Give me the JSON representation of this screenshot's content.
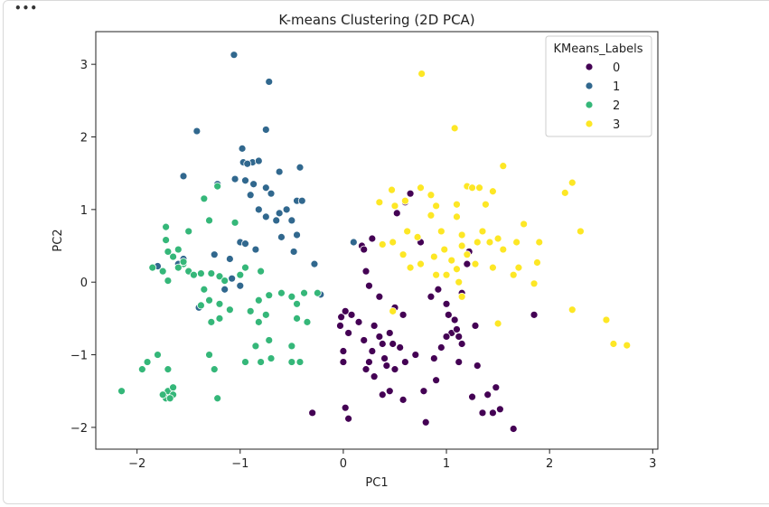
{
  "cell": {
    "menu_label": "•••"
  },
  "chart_data": {
    "type": "scatter",
    "title": "K-means Clustering (2D PCA)",
    "xlabel": "PC1",
    "ylabel": "PC2",
    "xlim": [
      -2.4,
      3.05
    ],
    "ylim": [
      -2.3,
      3.45
    ],
    "xticks": [
      -2,
      -1,
      0,
      1,
      2,
      3
    ],
    "yticks": [
      -2,
      -1,
      0,
      1,
      2,
      3
    ],
    "xtick_labels": [
      "−2",
      "−1",
      "0",
      "1",
      "2",
      "3"
    ],
    "ytick_labels": [
      "−2",
      "−1",
      "0",
      "1",
      "2",
      "3"
    ],
    "grid": false,
    "legend": {
      "title": "KMeans_Labels",
      "placement": "top-right",
      "entries": [
        "0",
        "1",
        "2",
        "3"
      ]
    },
    "colors": [
      "#440154",
      "#31688e",
      "#35b779",
      "#fde725"
    ],
    "series": [
      {
        "name": "0",
        "points": [
          [
            -0.3,
            -1.8
          ],
          [
            0.02,
            -1.73
          ],
          [
            0.05,
            -1.88
          ],
          [
            -0.02,
            -0.48
          ],
          [
            0.02,
            -0.4
          ],
          [
            0.08,
            -0.45
          ],
          [
            -0.03,
            -0.6
          ],
          [
            0.05,
            -0.7
          ],
          [
            0.0,
            -0.95
          ],
          [
            0.0,
            -1.1
          ],
          [
            0.15,
            -0.55
          ],
          [
            0.2,
            -0.8
          ],
          [
            0.25,
            -1.1
          ],
          [
            0.22,
            -1.2
          ],
          [
            0.28,
            -0.95
          ],
          [
            0.3,
            -0.6
          ],
          [
            0.35,
            -0.75
          ],
          [
            0.38,
            -0.85
          ],
          [
            0.4,
            -1.05
          ],
          [
            0.42,
            -1.15
          ],
          [
            0.45,
            -0.7
          ],
          [
            0.48,
            -0.85
          ],
          [
            0.5,
            -1.2
          ],
          [
            0.38,
            -1.55
          ],
          [
            0.3,
            -1.3
          ],
          [
            0.55,
            -0.9
          ],
          [
            0.58,
            -0.45
          ],
          [
            0.5,
            -0.35
          ],
          [
            0.35,
            -0.2
          ],
          [
            0.25,
            -0.05
          ],
          [
            0.22,
            0.15
          ],
          [
            0.18,
            0.5
          ],
          [
            0.2,
            0.45
          ],
          [
            0.28,
            0.6
          ],
          [
            0.52,
            0.95
          ],
          [
            0.6,
            1.1
          ],
          [
            0.65,
            1.22
          ],
          [
            0.75,
            0.55
          ],
          [
            0.85,
            -0.2
          ],
          [
            0.92,
            -0.1
          ],
          [
            1.0,
            -0.3
          ],
          [
            1.02,
            -0.45
          ],
          [
            1.05,
            -0.7
          ],
          [
            1.1,
            -0.65
          ],
          [
            1.12,
            -0.75
          ],
          [
            1.15,
            -0.85
          ],
          [
            1.08,
            -0.52
          ],
          [
            1.15,
            -0.15
          ],
          [
            1.2,
            0.25
          ],
          [
            1.22,
            0.42
          ],
          [
            1.28,
            -0.6
          ],
          [
            1.3,
            -1.15
          ],
          [
            1.35,
            -1.8
          ],
          [
            1.4,
            -1.55
          ],
          [
            1.45,
            -1.8
          ],
          [
            1.48,
            -1.45
          ],
          [
            1.52,
            -1.75
          ],
          [
            1.65,
            -2.02
          ],
          [
            1.85,
            -0.45
          ],
          [
            0.8,
            -1.93
          ],
          [
            0.58,
            -1.62
          ],
          [
            0.78,
            -1.5
          ],
          [
            0.9,
            -1.35
          ],
          [
            0.88,
            -1.05
          ],
          [
            0.95,
            -0.9
          ],
          [
            1.12,
            -1.1
          ],
          [
            1.25,
            -1.58
          ],
          [
            0.6,
            -1.1
          ],
          [
            0.7,
            -1.0
          ],
          [
            0.45,
            -1.5
          ],
          [
            1.0,
            -0.75
          ]
        ]
      },
      {
        "name": "1",
        "points": [
          [
            -1.06,
            3.13
          ],
          [
            -0.72,
            2.76
          ],
          [
            -1.42,
            2.08
          ],
          [
            -0.75,
            2.1
          ],
          [
            -0.98,
            1.84
          ],
          [
            -0.88,
            1.65
          ],
          [
            -0.97,
            1.65
          ],
          [
            -0.93,
            1.63
          ],
          [
            -0.82,
            1.67
          ],
          [
            -1.05,
            1.42
          ],
          [
            -0.95,
            1.4
          ],
          [
            -0.42,
            1.58
          ],
          [
            -0.62,
            1.52
          ],
          [
            -0.87,
            1.35
          ],
          [
            -1.55,
            1.46
          ],
          [
            -1.22,
            1.35
          ],
          [
            -0.75,
            1.3
          ],
          [
            -0.9,
            1.2
          ],
          [
            -0.7,
            1.22
          ],
          [
            -0.82,
            1.0
          ],
          [
            -0.75,
            0.9
          ],
          [
            -0.62,
            0.95
          ],
          [
            -0.55,
            1.0
          ],
          [
            -0.45,
            1.12
          ],
          [
            -0.4,
            1.12
          ],
          [
            -0.5,
            0.85
          ],
          [
            -0.65,
            0.85
          ],
          [
            -0.6,
            0.62
          ],
          [
            -0.45,
            0.65
          ],
          [
            -0.48,
            0.42
          ],
          [
            -1.0,
            0.55
          ],
          [
            -0.95,
            0.53
          ],
          [
            -0.85,
            0.45
          ],
          [
            -1.1,
            0.32
          ],
          [
            -1.25,
            0.38
          ],
          [
            -1.55,
            0.32
          ],
          [
            -1.6,
            0.25
          ],
          [
            -1.8,
            0.22
          ],
          [
            -1.08,
            0.05
          ],
          [
            -1.0,
            -0.05
          ],
          [
            -1.15,
            -0.1
          ],
          [
            -1.4,
            -0.35
          ],
          [
            -0.28,
            0.25
          ],
          [
            -0.22,
            -0.17
          ],
          [
            0.1,
            0.55
          ]
        ]
      },
      {
        "name": "2",
        "points": [
          [
            -2.15,
            -1.5
          ],
          [
            -1.95,
            -1.2
          ],
          [
            -1.9,
            -1.1
          ],
          [
            -1.8,
            -1.0
          ],
          [
            -1.7,
            -1.2
          ],
          [
            -1.7,
            -1.5
          ],
          [
            -1.65,
            -1.45
          ],
          [
            -1.65,
            -1.55
          ],
          [
            -1.72,
            -1.6
          ],
          [
            -1.68,
            -1.6
          ],
          [
            -1.75,
            -1.55
          ],
          [
            -1.3,
            -1.0
          ],
          [
            -1.25,
            -1.2
          ],
          [
            -1.22,
            -1.6
          ],
          [
            -0.95,
            -1.1
          ],
          [
            -0.8,
            -1.1
          ],
          [
            -0.7,
            -1.05
          ],
          [
            -0.85,
            -0.88
          ],
          [
            -0.72,
            -0.8
          ],
          [
            -0.5,
            -1.1
          ],
          [
            -0.42,
            -1.1
          ],
          [
            -0.5,
            -0.88
          ],
          [
            -0.45,
            -0.5
          ],
          [
            -0.35,
            -0.55
          ],
          [
            -0.45,
            -0.3
          ],
          [
            -0.5,
            -0.2
          ],
          [
            -0.6,
            -0.15
          ],
          [
            -0.75,
            -0.45
          ],
          [
            -0.82,
            -0.55
          ],
          [
            -0.9,
            -0.4
          ],
          [
            -1.2,
            -0.5
          ],
          [
            -1.28,
            -0.55
          ],
          [
            -1.38,
            -0.32
          ],
          [
            -1.3,
            -0.25
          ],
          [
            -1.2,
            -0.3
          ],
          [
            -1.1,
            -0.38
          ],
          [
            -1.35,
            -0.1
          ],
          [
            -1.38,
            0.12
          ],
          [
            -1.28,
            0.12
          ],
          [
            -1.2,
            0.08
          ],
          [
            -1.15,
            0.02
          ],
          [
            -1.0,
            0.1
          ],
          [
            -1.5,
            0.15
          ],
          [
            -1.55,
            0.25
          ],
          [
            -1.65,
            0.35
          ],
          [
            -1.7,
            0.42
          ],
          [
            -1.6,
            0.45
          ],
          [
            -1.72,
            0.58
          ],
          [
            -1.85,
            0.2
          ],
          [
            -1.75,
            0.15
          ],
          [
            -1.7,
            0.02
          ],
          [
            -1.5,
            0.7
          ],
          [
            -1.3,
            0.85
          ],
          [
            -1.05,
            0.82
          ],
          [
            -1.22,
            1.32
          ],
          [
            -1.35,
            1.15
          ],
          [
            -1.72,
            0.76
          ],
          [
            -0.82,
            -0.25
          ],
          [
            -0.72,
            -0.18
          ],
          [
            -0.38,
            -0.15
          ],
          [
            -0.25,
            -0.15
          ],
          [
            -0.8,
            0.15
          ],
          [
            -1.55,
            0.28
          ],
          [
            -1.45,
            0.1
          ],
          [
            -0.95,
            0.2
          ],
          [
            -1.6,
            0.2
          ]
        ]
      },
      {
        "name": "3",
        "points": [
          [
            0.76,
            2.87
          ],
          [
            1.08,
            2.12
          ],
          [
            0.35,
            1.1
          ],
          [
            0.47,
            1.27
          ],
          [
            0.5,
            1.05
          ],
          [
            0.6,
            1.12
          ],
          [
            0.75,
            1.3
          ],
          [
            0.85,
            1.2
          ],
          [
            0.9,
            1.05
          ],
          [
            0.62,
            0.7
          ],
          [
            0.72,
            0.62
          ],
          [
            0.85,
            0.92
          ],
          [
            0.95,
            0.7
          ],
          [
            0.98,
            0.45
          ],
          [
            0.88,
            0.35
          ],
          [
            0.75,
            0.25
          ],
          [
            0.65,
            0.2
          ],
          [
            0.58,
            0.38
          ],
          [
            0.48,
            0.55
          ],
          [
            0.38,
            0.52
          ],
          [
            1.1,
            1.07
          ],
          [
            1.2,
            1.32
          ],
          [
            1.25,
            1.3
          ],
          [
            1.32,
            1.3
          ],
          [
            1.38,
            1.07
          ],
          [
            1.45,
            1.25
          ],
          [
            1.55,
            1.6
          ],
          [
            1.1,
            0.9
          ],
          [
            1.15,
            0.65
          ],
          [
            1.15,
            0.5
          ],
          [
            1.2,
            0.38
          ],
          [
            1.28,
            0.25
          ],
          [
            1.3,
            0.55
          ],
          [
            1.35,
            0.7
          ],
          [
            1.42,
            0.55
          ],
          [
            1.45,
            0.2
          ],
          [
            1.5,
            0.6
          ],
          [
            1.55,
            0.45
          ],
          [
            1.65,
            0.1
          ],
          [
            1.7,
            0.2
          ],
          [
            1.68,
            0.55
          ],
          [
            1.75,
            0.8
          ],
          [
            1.9,
            0.55
          ],
          [
            1.88,
            0.27
          ],
          [
            1.85,
            -0.02
          ],
          [
            2.15,
            1.23
          ],
          [
            2.22,
            1.37
          ],
          [
            2.3,
            0.7
          ],
          [
            2.22,
            -0.38
          ],
          [
            2.55,
            -0.52
          ],
          [
            2.62,
            -0.85
          ],
          [
            2.75,
            -0.87
          ],
          [
            1.5,
            -0.57
          ],
          [
            0.48,
            -0.4
          ],
          [
            1.0,
            0.1
          ],
          [
            1.1,
            0.18
          ],
          [
            0.9,
            0.1
          ],
          [
            1.05,
            0.3
          ],
          [
            1.12,
            0.0
          ],
          [
            1.15,
            -0.2
          ]
        ]
      }
    ]
  }
}
